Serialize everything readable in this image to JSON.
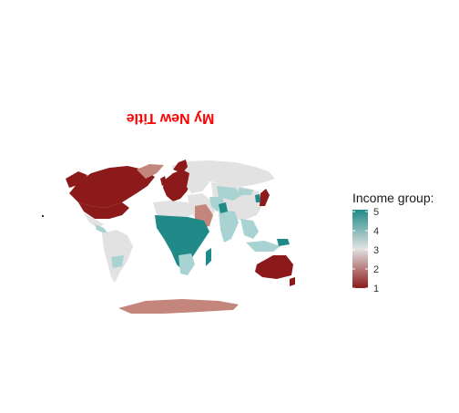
{
  "map": {
    "title": "My New Title",
    "title_color": "#ff0000",
    "title_orientation": "rotated 180 degrees",
    "projection": "Winkel tripel world map",
    "land_default_color": "#e2e2e2",
    "regions": [
      {
        "name": "North America",
        "income_group": 1,
        "color": "#8c1a1a"
      },
      {
        "name": "Greenland",
        "income_group": 2,
        "color": "#c4857c"
      },
      {
        "name": "Mexico",
        "income_group": 4,
        "color": "#a9d3d2"
      },
      {
        "name": "South America",
        "income_group": 3,
        "color": "#e2e2e2"
      },
      {
        "name": "Western Europe",
        "income_group": 1,
        "color": "#8c1a1a"
      },
      {
        "name": "Russia",
        "income_group": 3,
        "color": "#e2e2e2"
      },
      {
        "name": "Sub-Saharan Africa",
        "income_group": 5,
        "color": "#1f8a88"
      },
      {
        "name": "Saudi Arabia",
        "income_group": 2,
        "color": "#c4857c"
      },
      {
        "name": "India",
        "income_group": 4,
        "color": "#a9d3d2"
      },
      {
        "name": "China",
        "income_group": 3,
        "color": "#e2e2e2"
      },
      {
        "name": "Japan",
        "income_group": 1,
        "color": "#8c1a1a"
      },
      {
        "name": "Australia",
        "income_group": 1,
        "color": "#8c1a1a"
      },
      {
        "name": "Antarctica",
        "income_group": 2,
        "color": "#c4857c"
      }
    ]
  },
  "legend": {
    "title": "Income group:",
    "ticks": [
      "5",
      "4",
      "3",
      "2",
      "1"
    ],
    "scale": {
      "min": 1,
      "max": 5
    },
    "colors": {
      "low": "#8c1a1a",
      "mid": "#e2e2e2",
      "high": "#1f8a88"
    }
  }
}
